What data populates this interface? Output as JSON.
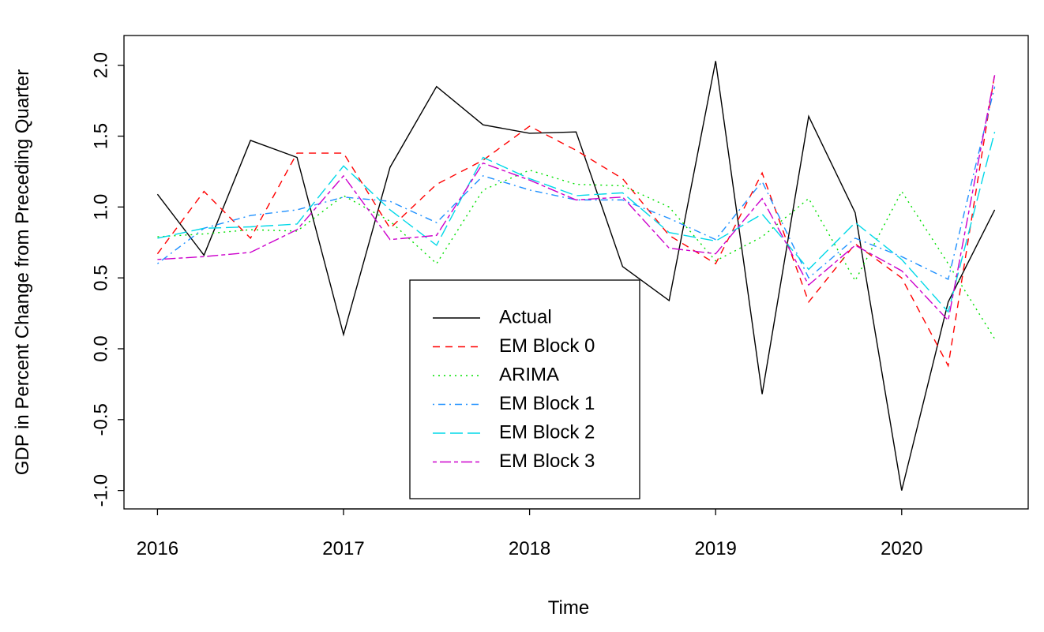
{
  "chart_data": {
    "type": "line",
    "x_label": "Time",
    "y_label": "GDP in Percent Change from Preceding Quarter",
    "x": [
      2016,
      2016.25,
      2016.5,
      2016.75,
      2017,
      2017.25,
      2017.5,
      2017.75,
      2018,
      2018.25,
      2018.5,
      2018.75,
      2019,
      2019.25,
      2019.5,
      2019.75,
      2020,
      2020.25,
      2020.5
    ],
    "series": [
      {
        "name": "Actual",
        "color": "#000000",
        "dash": "solid",
        "values": [
          1.09,
          0.66,
          1.47,
          1.35,
          0.1,
          1.28,
          1.85,
          1.58,
          1.52,
          1.53,
          0.58,
          0.34,
          2.03,
          -0.32,
          1.64,
          0.96,
          -1.0,
          0.33,
          0.98
        ]
      },
      {
        "name": "EM Block 0",
        "color": "#ff0000",
        "dash": "dashed",
        "values": [
          0.67,
          1.11,
          0.78,
          1.38,
          1.38,
          0.85,
          1.16,
          1.33,
          1.57,
          1.4,
          1.2,
          0.8,
          0.6,
          1.24,
          0.33,
          0.74,
          0.5,
          -0.12,
          1.94
        ]
      },
      {
        "name": "ARIMA",
        "color": "#00e000",
        "dash": "dotted",
        "values": [
          0.79,
          0.81,
          0.84,
          0.83,
          1.08,
          0.9,
          0.6,
          1.12,
          1.26,
          1.16,
          1.15,
          1.0,
          0.62,
          0.79,
          1.06,
          0.48,
          1.11,
          0.6,
          0.07
        ]
      },
      {
        "name": "EM Block 1",
        "color": "#1e90ff",
        "dash": "dotdash",
        "values": [
          0.6,
          0.85,
          0.94,
          0.98,
          1.07,
          1.04,
          0.89,
          1.22,
          1.12,
          1.05,
          1.05,
          0.92,
          0.77,
          1.18,
          0.5,
          0.78,
          0.65,
          0.49,
          1.85
        ]
      },
      {
        "name": "EM Block 2",
        "color": "#00d8e8",
        "dash": "longdash",
        "values": [
          0.78,
          0.85,
          0.86,
          0.88,
          1.29,
          0.98,
          0.73,
          1.35,
          1.2,
          1.08,
          1.1,
          0.82,
          0.76,
          0.95,
          0.56,
          0.89,
          0.63,
          0.26,
          1.53
        ]
      },
      {
        "name": "EM Block 3",
        "color": "#cc00cc",
        "dash": "twodash",
        "values": [
          0.63,
          0.65,
          0.68,
          0.84,
          1.22,
          0.77,
          0.8,
          1.31,
          1.19,
          1.05,
          1.07,
          0.71,
          0.67,
          1.06,
          0.45,
          0.73,
          0.55,
          0.2,
          1.93
        ]
      }
    ],
    "xlim": [
      2015.82,
      2020.68
    ],
    "ylim": [
      -1.13,
      2.21
    ],
    "xticks": [
      2016,
      2017,
      2018,
      2019,
      2020
    ],
    "yticks": [
      {
        "value": -1,
        "label": "-1.0"
      },
      -0.5,
      {
        "value": 0,
        "label": "0.0"
      },
      0.5,
      {
        "value": 1,
        "label": "1.0"
      },
      1.5,
      {
        "value": 2,
        "label": "2.0"
      }
    ],
    "legend": "bottom-center"
  }
}
